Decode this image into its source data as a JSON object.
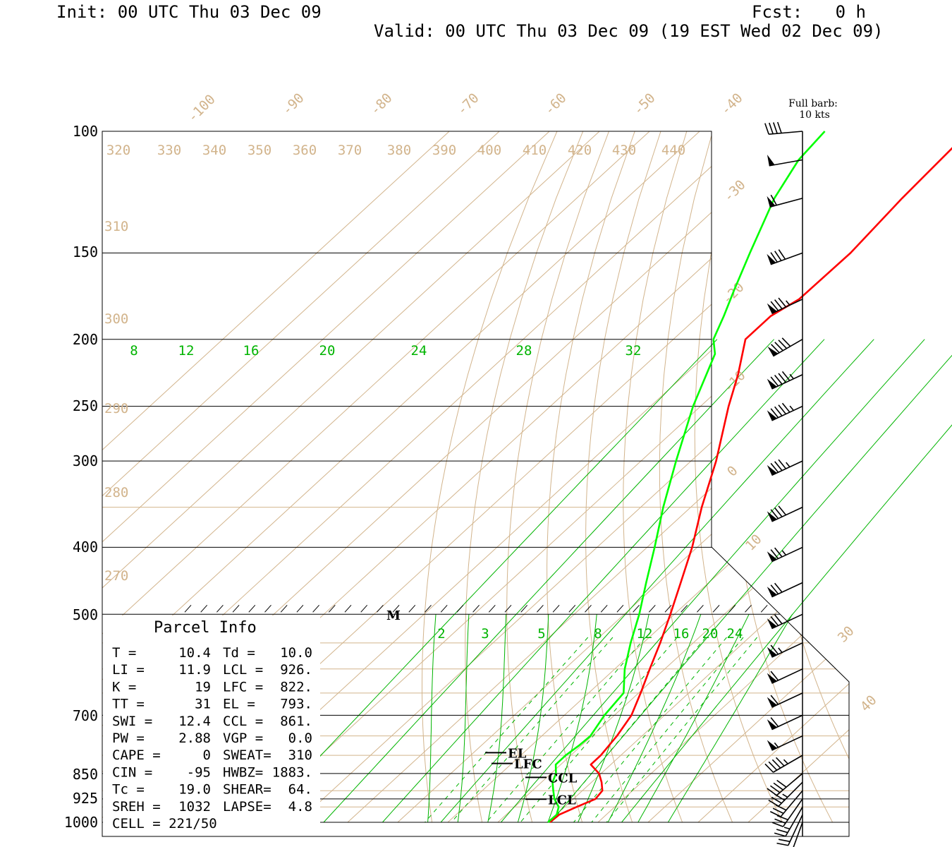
{
  "header": {
    "init": "Init: 00 UTC Thu 03 Dec 09",
    "fcst_label": "Fcst:",
    "fcst_value": "0 h",
    "valid": "Valid: 00 UTC Thu 03 Dec 09 (19 EST Wed 02 Dec 09)"
  },
  "barb_legend": {
    "line1": "Full barb:",
    "line2": "10 kts"
  },
  "colors": {
    "temperature": "#ff0000",
    "dewpoint": "#00ff00",
    "mixing_ratio": "#00b400",
    "isotherm_adiabat": "#d2b48c",
    "frame": "#000000"
  },
  "parcel": {
    "title": "Parcel Info",
    "rows": [
      [
        "T  =",
        "10.4",
        "Td =",
        "10.0"
      ],
      [
        "LI =",
        "11.9",
        "LCL =",
        "926."
      ],
      [
        "K  =",
        "19",
        "LFC =",
        "822."
      ],
      [
        "TT =",
        "31",
        "EL  =",
        "793."
      ],
      [
        "SWI =",
        "12.4",
        "CCL =",
        "861."
      ],
      [
        "PW =",
        "2.88",
        "VGP =",
        "0.0"
      ],
      [
        "CAPE =",
        "0",
        "SWEAT=",
        "310"
      ],
      [
        "CIN =",
        "-95",
        "HWBZ=",
        "1883."
      ],
      [
        "Tc =",
        "19.0",
        "SHEAR=",
        "64."
      ],
      [
        "SREH =",
        "1032",
        "LAPSE=",
        "4.8"
      ],
      [
        "CELL = 221/50",
        "",
        "",
        ""
      ]
    ]
  },
  "chart_data": {
    "type": "line",
    "title": "",
    "xlabel": "",
    "ylabel": "",
    "y_axis": "pressure (hPa), log scale",
    "ylim": [
      1000,
      100
    ],
    "pressure_labels": [
      "100",
      "150",
      "200",
      "250",
      "300",
      "400",
      "500",
      "700",
      "850",
      "925",
      "1000"
    ],
    "isotherm_labels": [
      "-100",
      "-90",
      "-80",
      "-70",
      "-60",
      "-50",
      "-40",
      "-30",
      "-20",
      "-10",
      "0",
      "10",
      "30",
      "40"
    ],
    "theta_labels_top": [
      "320",
      "330",
      "340",
      "350",
      "360",
      "370",
      "380",
      "390",
      "400",
      "410",
      "420",
      "430",
      "440"
    ],
    "theta_labels_side": [
      "310",
      "300",
      "290",
      "280",
      "270"
    ],
    "mixing_ratio_labels_upper": [
      "8",
      "12",
      "16",
      "20",
      "24",
      "28",
      "32"
    ],
    "mixing_ratio_labels_lower": [
      "2",
      "3",
      "5",
      "8",
      "12",
      "16",
      "20",
      "24"
    ],
    "marker_label": "M",
    "series": [
      {
        "variable": "temperature",
        "points": [
          [
            1000,
            10.4
          ],
          [
            975,
            10.6
          ],
          [
            950,
            12.4
          ],
          [
            925,
            14.4
          ],
          [
            900,
            14.0
          ],
          [
            875,
            12.0
          ],
          [
            850,
            9.6
          ],
          [
            825,
            6.0
          ],
          [
            800,
            6.0
          ],
          [
            750,
            5.0
          ],
          [
            700,
            3.4
          ],
          [
            650,
            0.4
          ],
          [
            600,
            -3.0
          ],
          [
            550,
            -6.6
          ],
          [
            500,
            -10.8
          ],
          [
            450,
            -15.6
          ],
          [
            400,
            -21.0
          ],
          [
            350,
            -27.8
          ],
          [
            300,
            -35.0
          ],
          [
            250,
            -44.4
          ],
          [
            225,
            -49.4
          ],
          [
            200,
            -55.6
          ],
          [
            185,
            -55.6
          ],
          [
            175,
            -53.6
          ],
          [
            150,
            -53.4
          ],
          [
            125,
            -55.0
          ],
          [
            100,
            -56.2
          ]
        ]
      },
      {
        "variable": "dewpoint",
        "points": [
          [
            1000,
            10.0
          ],
          [
            975,
            10.1
          ],
          [
            950,
            8.8
          ],
          [
            925,
            6.2
          ],
          [
            900,
            4.2
          ],
          [
            875,
            2.2
          ],
          [
            850,
            1.0
          ],
          [
            825,
            -1.0
          ],
          [
            800,
            -1.0
          ],
          [
            775,
            -0.5
          ],
          [
            750,
            -0.3
          ],
          [
            700,
            -2.0
          ],
          [
            650,
            -3.0
          ],
          [
            600,
            -8.0
          ],
          [
            550,
            -12.5
          ],
          [
            500,
            -17.0
          ],
          [
            450,
            -22.5
          ],
          [
            400,
            -28.5
          ],
          [
            350,
            -35.5
          ],
          [
            300,
            -43.0
          ],
          [
            250,
            -51.5
          ],
          [
            210,
            -58.5
          ],
          [
            200,
            -62.0
          ],
          [
            185,
            -65.0
          ],
          [
            170,
            -68.5
          ],
          [
            150,
            -73.5
          ],
          [
            125,
            -80.5
          ],
          [
            110,
            -84.0
          ],
          [
            100,
            -85.0
          ]
        ]
      }
    ],
    "levels": [
      {
        "name": "EL",
        "p": 793
      },
      {
        "name": "LFC",
        "p": 822
      },
      {
        "name": "CCL",
        "p": 861
      },
      {
        "name": "LCL",
        "p": 926
      }
    ],
    "wind": {
      "units": "kts",
      "levels": [
        {
          "p": 1000,
          "dir": 200,
          "spd": 15
        },
        {
          "p": 975,
          "dir": 205,
          "spd": 20
        },
        {
          "p": 950,
          "dir": 210,
          "spd": 25
        },
        {
          "p": 925,
          "dir": 215,
          "spd": 30
        },
        {
          "p": 900,
          "dir": 220,
          "spd": 30
        },
        {
          "p": 875,
          "dir": 225,
          "spd": 35
        },
        {
          "p": 850,
          "dir": 230,
          "spd": 40
        },
        {
          "p": 800,
          "dir": 240,
          "spd": 45
        },
        {
          "p": 750,
          "dir": 245,
          "spd": 55
        },
        {
          "p": 700,
          "dir": 245,
          "spd": 60
        },
        {
          "p": 650,
          "dir": 245,
          "spd": 60
        },
        {
          "p": 600,
          "dir": 245,
          "spd": 60
        },
        {
          "p": 550,
          "dir": 245,
          "spd": 65
        },
        {
          "p": 500,
          "dir": 245,
          "spd": 70
        },
        {
          "p": 450,
          "dir": 245,
          "spd": 70
        },
        {
          "p": 400,
          "dir": 245,
          "spd": 75
        },
        {
          "p": 350,
          "dir": 245,
          "spd": 80
        },
        {
          "p": 300,
          "dir": 245,
          "spd": 85
        },
        {
          "p": 250,
          "dir": 245,
          "spd": 95
        },
        {
          "p": 225,
          "dir": 245,
          "spd": 95
        },
        {
          "p": 200,
          "dir": 240,
          "spd": 90
        },
        {
          "p": 175,
          "dir": 245,
          "spd": 85
        },
        {
          "p": 150,
          "dir": 250,
          "spd": 80
        },
        {
          "p": 125,
          "dir": 255,
          "spd": 60
        },
        {
          "p": 110,
          "dir": 260,
          "spd": 50
        },
        {
          "p": 100,
          "dir": 265,
          "spd": 40
        }
      ]
    }
  }
}
